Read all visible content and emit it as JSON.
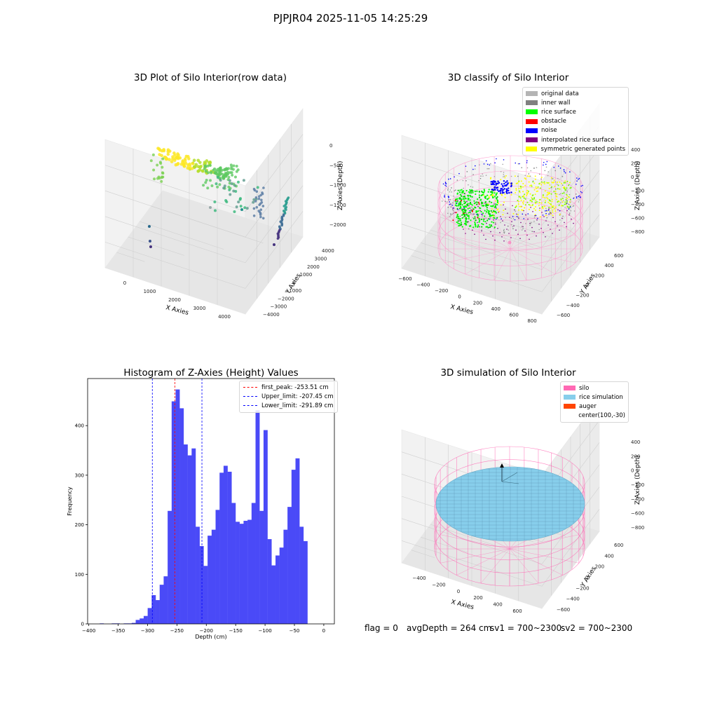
{
  "figure": {
    "title": "PJPJR04 2025-11-05 14:25:29"
  },
  "status": {
    "flag": "flag = 0",
    "avg_depth": "avgDepth = 264 cm",
    "sv1": "sv1 = 700~2300",
    "sv2": "sv2 = 700~2300"
  },
  "chart_data": [
    {
      "type": "scatter",
      "title": "3D Plot of Silo Interior(row data)",
      "xlabel": "X Axies",
      "ylabel": "Y Axies",
      "zlabel": "Z Axies (Depth)",
      "x_ticks": [
        "0",
        "1000",
        "2000",
        "3000",
        "4000"
      ],
      "y_ticks": [
        "4000",
        "3000",
        "2000",
        "1000",
        "0",
        "−1000",
        "−2000",
        "−3000",
        "−4000"
      ],
      "z_ticks": [
        "0",
        "−500",
        "−1000",
        "−1500",
        "−2000"
      ],
      "colormap": "viridis"
    },
    {
      "type": "scatter",
      "title": "3D classify of Silo Interior",
      "xlabel": "X Axies",
      "ylabel": "Y Axies",
      "zlabel": "Z Axies (Depth)",
      "x_ticks": [
        "−600",
        "−400",
        "−200",
        "0",
        "200",
        "400",
        "600",
        "800"
      ],
      "y_ticks": [
        "600",
        "400",
        "200",
        "0",
        "−200",
        "−400",
        "−600"
      ],
      "z_ticks": [
        "400",
        "200",
        "0",
        "−200",
        "−400",
        "−600",
        "−800"
      ],
      "legend": [
        {
          "label": "original data",
          "color": "#b4b4b4"
        },
        {
          "label": "inner wall",
          "color": "#808080"
        },
        {
          "label": "rice surface",
          "color": "#00ff00"
        },
        {
          "label": "obstacle",
          "color": "#ff0000"
        },
        {
          "label": "noise",
          "color": "#0000ff"
        },
        {
          "label": "interpolated rice surface",
          "color": "#800080"
        },
        {
          "label": "symmetric generated points",
          "color": "#ffff00"
        }
      ]
    },
    {
      "type": "bar",
      "title": "Histogram of Z-Axies (Height) Values",
      "xlabel": "Depth (cm)",
      "ylabel": "Frequency",
      "xlim": [
        -402,
        18
      ],
      "ylim": [
        0,
        495
      ],
      "x_ticks": [
        -400,
        -350,
        -300,
        -250,
        -200,
        -150,
        -100,
        -50,
        0
      ],
      "y_ticks": [
        0,
        100,
        200,
        300,
        400
      ],
      "bin_width": 6.8,
      "bin_starts": [
        -395,
        -388.2,
        -381.4,
        -374.6,
        -367.8,
        -361,
        -354.2,
        -347.4,
        -340.6,
        -333.8,
        -327,
        -320.2,
        -313.4,
        -306.6,
        -299.8,
        -293,
        -286.2,
        -279.4,
        -272.6,
        -265.8,
        -259,
        -252.2,
        -245.4,
        -238.6,
        -231.8,
        -225,
        -218.2,
        -211.4,
        -204.6,
        -197.8,
        -191,
        -184.2,
        -177.4,
        -170.6,
        -163.8,
        -157,
        -150.2,
        -143.4,
        -136.6,
        -129.8,
        -123,
        -116.2,
        -109.4,
        -102.6,
        -95.8,
        -89,
        -82.2,
        -75.4,
        -68.6,
        -61.8,
        -55,
        -48.2,
        -41.4,
        -34.6,
        -27.8,
        -21,
        -14.2,
        -7.4
      ],
      "values": [
        0,
        0,
        1,
        0,
        0,
        1,
        1,
        0,
        1,
        1,
        2,
        8,
        11,
        16,
        32,
        58,
        48,
        79,
        96,
        228,
        449,
        473,
        435,
        362,
        340,
        354,
        196,
        157,
        117,
        178,
        190,
        230,
        305,
        319,
        307,
        244,
        206,
        202,
        208,
        210,
        244,
        431,
        228,
        391,
        171,
        118,
        138,
        154,
        190,
        236,
        311,
        334,
        196,
        167,
        0,
        0,
        0,
        0
      ],
      "series_color": "#4a4af7",
      "lines": [
        {
          "label": "first_peak: -253.51 cm",
          "x": -253.51,
          "color": "#ff0000"
        },
        {
          "label": "Upper_limit: -207.45 cm",
          "x": -207.45,
          "color": "#0000ff"
        },
        {
          "label": "Lower_limit: -291.89 cm",
          "x": -291.89,
          "color": "#0000ff"
        }
      ],
      "legend_position": "top-right"
    },
    {
      "type": "scatter",
      "title": "3D simulation of Silo Interior",
      "xlabel": "X Axies",
      "ylabel": "Y Axies",
      "zlabel": "Z Axies (Depth)",
      "x_ticks": [
        "−400",
        "−200",
        "0",
        "200",
        "400",
        "600"
      ],
      "y_ticks": [
        "600",
        "400",
        "200",
        "0",
        "−200",
        "−400",
        "−600"
      ],
      "z_ticks": [
        "400",
        "200",
        "0",
        "−200",
        "−400",
        "−600",
        "−800"
      ],
      "legend": [
        {
          "label": "silo",
          "color": "#ff69b4"
        },
        {
          "label": "rice simulation",
          "color": "#87ceeb"
        },
        {
          "label": "auger",
          "color": "#ff4500"
        },
        {
          "label": "center(100,-30)",
          "color": ""
        }
      ]
    }
  ]
}
